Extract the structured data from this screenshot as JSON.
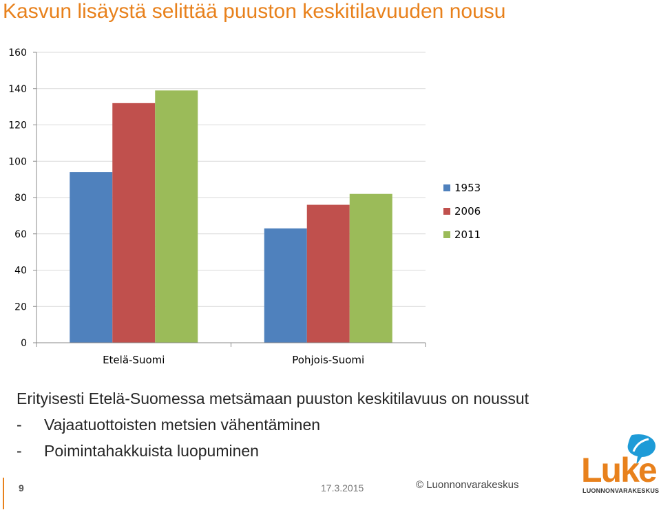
{
  "slide": {
    "title": "Kasvun lisäystä selittää puuston keskitilavuuden nousu",
    "text_main": "Erityisesti Etelä-Suomessa metsämaan puuston keskitilavuus on noussut",
    "bullets": [
      {
        "dash": "-",
        "text": "Vajaatuottoisten metsien vähentäminen"
      },
      {
        "dash": "-",
        "text": "Poimintahakkuista luopuminen"
      }
    ],
    "page_number": "9",
    "date": "17.3.2015",
    "copyright": "© Luonnonvarakeskus",
    "logo_word": "Luke",
    "logo_sub": "LUONNONVARAKESKUS"
  },
  "colors": {
    "accent": "#e8811c",
    "logo_bubble": "#1e9bd7"
  },
  "chart_data": {
    "type": "bar",
    "categories": [
      "Etelä-Suomi",
      "Pohjois-Suomi"
    ],
    "series": [
      {
        "name": "1953",
        "color": "#4f81bd",
        "values": [
          94,
          63
        ]
      },
      {
        "name": "2006",
        "color": "#c0504d",
        "values": [
          132,
          76
        ]
      },
      {
        "name": "2011",
        "color": "#9bbb59",
        "values": [
          139,
          82
        ]
      }
    ],
    "title": "",
    "xlabel": "",
    "ylabel": "",
    "ylim": [
      0,
      160
    ],
    "yticks": [
      0,
      20,
      40,
      60,
      80,
      100,
      120,
      140,
      160
    ],
    "grid": true,
    "legend": "right"
  }
}
